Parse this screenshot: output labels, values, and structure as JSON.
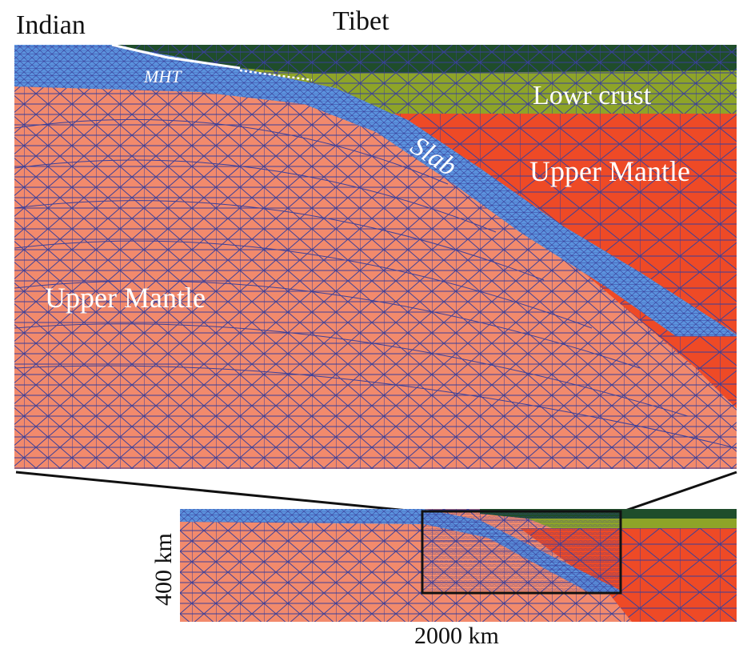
{
  "labels": {
    "indian": "Indian",
    "tibet": "Tibet",
    "mht": "MHT",
    "lower_crust": "Lowr crust",
    "slab": "Slab",
    "upper_mantle_right": "Upper Mantle",
    "upper_mantle_left": "Upper Mantle",
    "scale_depth": "400 km",
    "scale_width": "2000 km"
  },
  "colors": {
    "upper_crust": "#1f4d2b",
    "lower_crust": "#8ea428",
    "slab": "#5b93de",
    "indian_mantle": "#f28a6c",
    "tibet_mantle": "#ee4a26",
    "mesh_line": "#3a3f9a",
    "text_white": "#ffffff",
    "text_black": "#111111",
    "outline": "#111111"
  }
}
